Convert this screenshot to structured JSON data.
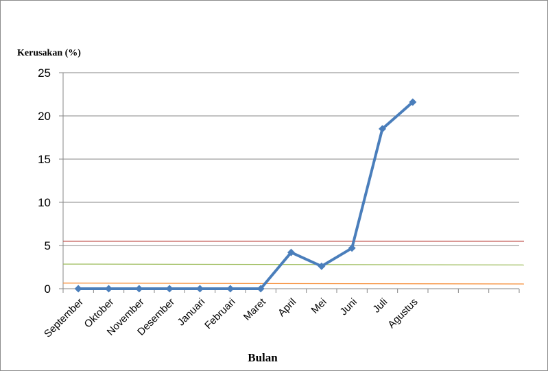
{
  "chart_data": {
    "type": "line",
    "ylabel": "Kerusakan (%)",
    "xlabel": "Bulan",
    "categories": [
      "September",
      "Oktober",
      "November",
      "Desember",
      "Januari",
      "Februari",
      "Maret",
      "April",
      "Mei",
      "Juni",
      "Juli",
      "Agustus"
    ],
    "extra_empty_categories": 3,
    "series": [
      {
        "values": [
          0,
          0,
          0,
          0,
          0,
          0,
          0,
          4.2,
          2.6,
          4.7,
          18.5,
          21.6
        ],
        "color": "#4a7ebb"
      }
    ],
    "ylim": [
      0,
      25
    ],
    "yticks": [
      0,
      5,
      10,
      15,
      20,
      25
    ],
    "grid": true,
    "reference_lines": [
      {
        "y_start": 5.5,
        "y_end": 5.5,
        "color": "#c0504d"
      },
      {
        "y_start": 2.85,
        "y_end": 2.75,
        "color": "#9bbb59"
      },
      {
        "y_start": 0.65,
        "y_end": 0.55,
        "color": "#f79646"
      }
    ]
  }
}
